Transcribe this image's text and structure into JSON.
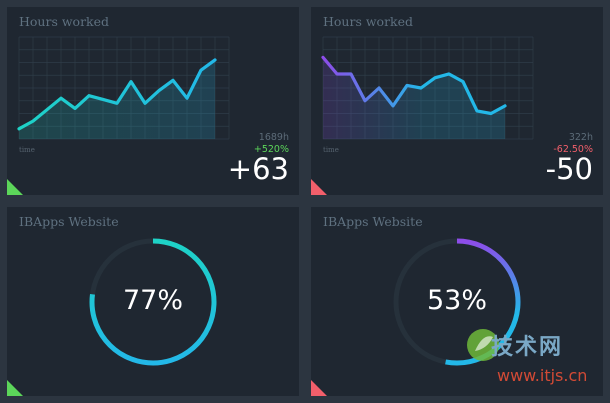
{
  "colors": {
    "page_bg": "#2c3540",
    "card_bg": "#1f2731",
    "teal": "#1ed2c6",
    "cyan": "#23b8e8",
    "purple": "#8e4ce9",
    "green": "#5cd65a",
    "red": "#f25f6b",
    "grid": "#2f3d48"
  },
  "cards": {
    "hours_up": {
      "title": "Hours worked",
      "time_label": "time",
      "total": "1689h",
      "change": "+520%",
      "delta": "+63",
      "change_color": "#5cd65a",
      "corner_color": "#5cd65a"
    },
    "hours_down": {
      "title": "Hours worked",
      "time_label": "time",
      "total": "322h",
      "change": "-62.50%",
      "delta": "-50",
      "change_color": "#f25f6b",
      "corner_color": "#f25f6b"
    },
    "website_77": {
      "title": "IBApps Website",
      "value": "77%",
      "percent": 77,
      "corner_color": "#5cd65a"
    },
    "website_53": {
      "title": "IBApps Website",
      "value": "53%",
      "percent": 53,
      "corner_color": "#f25f6b"
    }
  },
  "watermark": {
    "top_text": "技术网",
    "bottom_text": "www.itjs.cn"
  },
  "chart_data": [
    {
      "type": "area",
      "x": [
        0,
        1,
        2,
        3,
        4,
        5,
        6,
        7,
        8,
        9,
        10,
        11,
        12,
        13,
        14,
        15
      ],
      "y": [
        8,
        14,
        23,
        32,
        24,
        34,
        31,
        28,
        45,
        28,
        38,
        46,
        32,
        54,
        62,
        null
      ],
      "ylim": [
        0,
        80
      ],
      "title": "Hours worked",
      "xlabel": "time",
      "ylabel": "",
      "grid": true
    },
    {
      "type": "area",
      "x": [
        0,
        1,
        2,
        3,
        4,
        5,
        6,
        7,
        8,
        9,
        10,
        11,
        12,
        13,
        14,
        15
      ],
      "y": [
        64,
        51,
        51,
        30,
        40,
        26,
        42,
        40,
        48,
        51,
        45,
        22,
        20,
        26,
        null,
        null
      ],
      "ylim": [
        0,
        80
      ],
      "title": "Hours worked",
      "xlabel": "time",
      "ylabel": "",
      "grid": true
    },
    {
      "type": "pie",
      "title": "IBApps Website",
      "values": [
        77,
        23
      ]
    },
    {
      "type": "pie",
      "title": "IBApps Website",
      "values": [
        53,
        47
      ]
    }
  ]
}
